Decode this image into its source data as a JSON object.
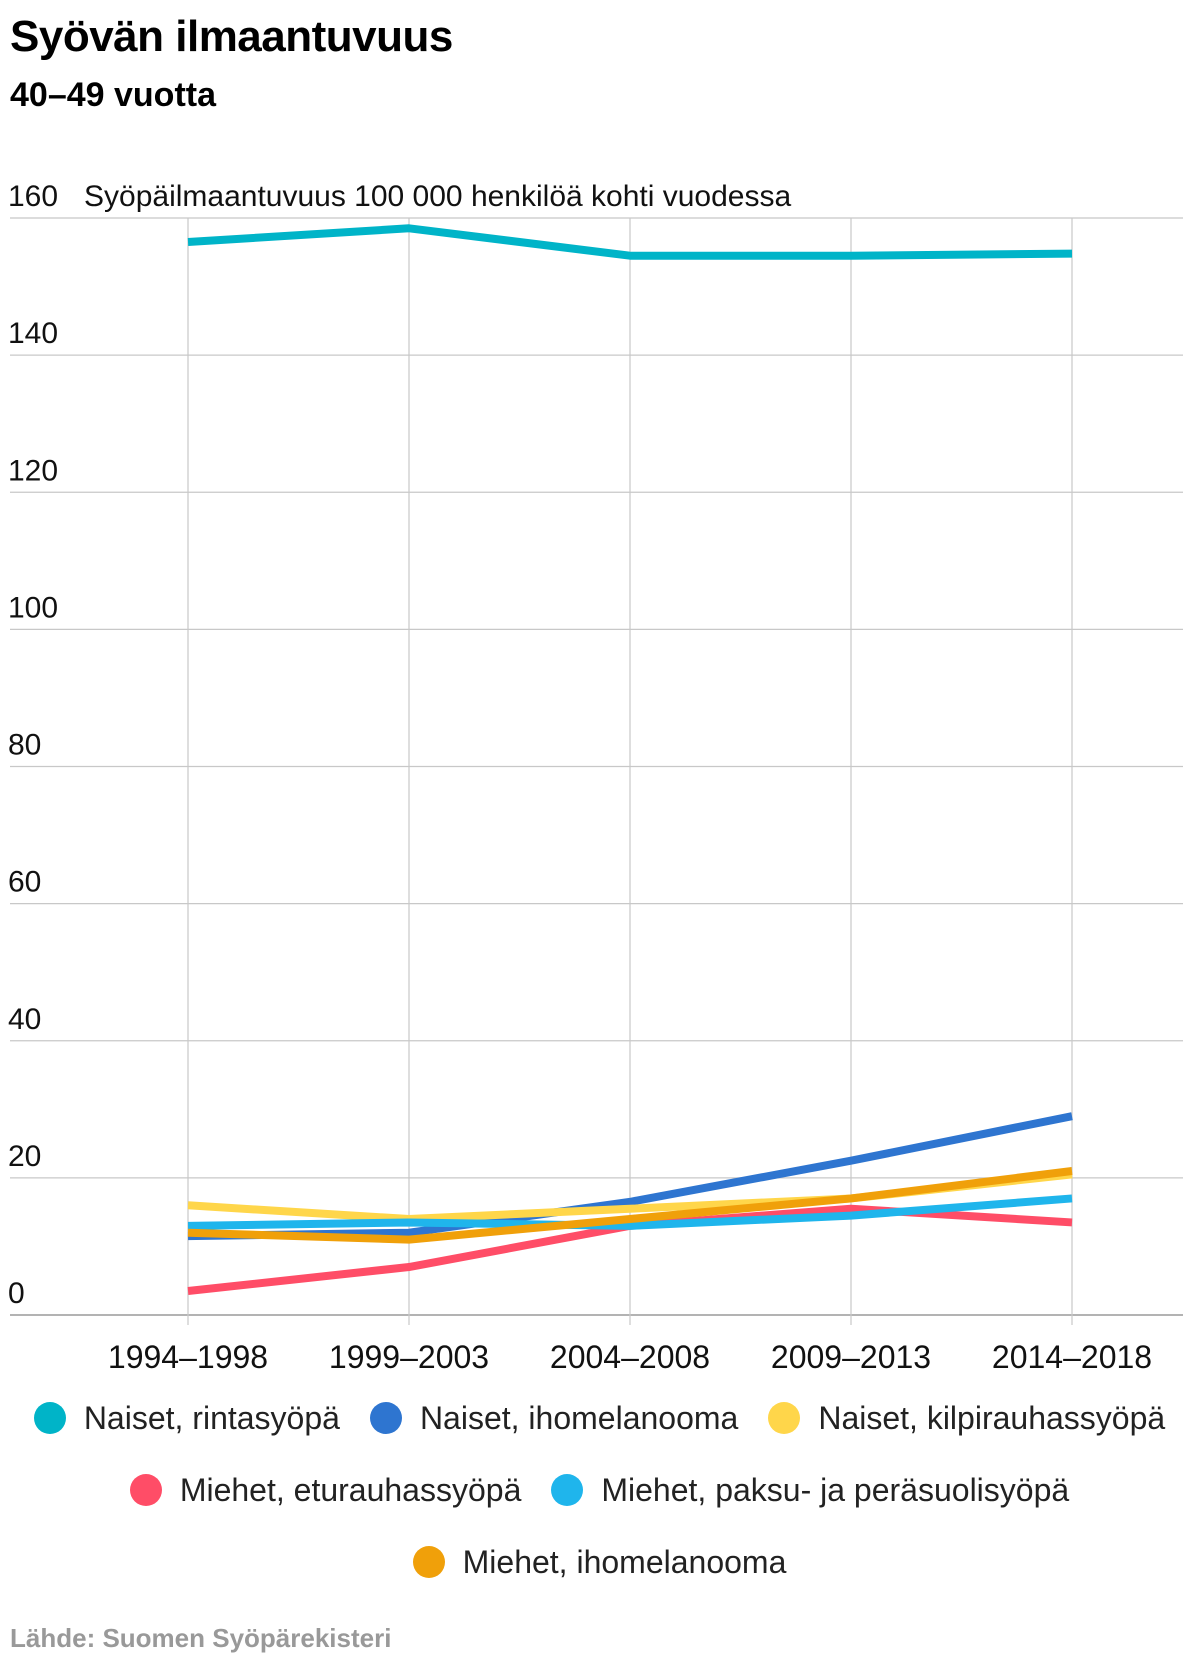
{
  "header": {
    "title": "Syövän ilmaantuvuus",
    "subtitle": "40–49 vuotta"
  },
  "chart_data": {
    "type": "line",
    "ylabel": "Syöpäilmaantuvuus 100 000 henkilöä kohti vuodessa",
    "xlabel": "",
    "ylim": [
      0,
      160
    ],
    "yticks": [
      0,
      20,
      40,
      60,
      80,
      100,
      120,
      140,
      160
    ],
    "grid": true,
    "categories": [
      "1994–1998",
      "1999–2003",
      "2004–2008",
      "2009–2013",
      "2014–2018"
    ],
    "series": [
      {
        "name": "Naiset, rintasyöpä",
        "color": "#00b4c8",
        "values": [
          156.5,
          158.5,
          154.5,
          154.5,
          154.8
        ]
      },
      {
        "name": "Naiset, ihomelanooma",
        "color": "#2e75d0",
        "values": [
          11.5,
          12.0,
          16.5,
          22.5,
          29.0
        ]
      },
      {
        "name": "Naiset, kilpirauhassyöpä",
        "color": "#ffd64a",
        "values": [
          16.0,
          14.0,
          15.5,
          17.0,
          20.5
        ]
      },
      {
        "name": "Miehet, eturauhassyöpä",
        "color": "#ff4d67",
        "values": [
          3.5,
          7.0,
          13.0,
          15.5,
          13.5
        ]
      },
      {
        "name": "Miehet, paksu- ja peräsuolisyöpä",
        "color": "#1fb5ec",
        "values": [
          13.0,
          13.5,
          13.0,
          14.5,
          17.0
        ]
      },
      {
        "name": "Miehet, ihomelanooma",
        "color": "#f0a00a",
        "values": [
          12.0,
          11.0,
          14.0,
          17.0,
          21.0
        ]
      }
    ]
  },
  "footer": {
    "source": "Lähde: Suomen Syöpärekisteri"
  }
}
